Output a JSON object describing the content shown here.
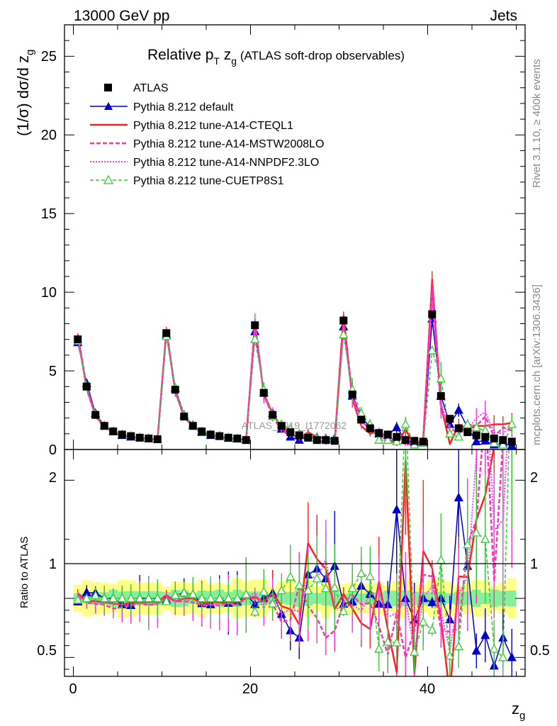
{
  "header": {
    "left": "13000 GeV pp",
    "right": "Jets"
  },
  "side_labels": {
    "rivet": "Rivet 3.1.10, ≥ 400k events",
    "mcplots": "mcplots.cern.ch [arXiv:1306.3436]"
  },
  "watermark": "ATLAS_2019_I1772062",
  "chart_data": {
    "type": "scatter",
    "title_main": "Relative p",
    "title_sub_t": "T",
    "title_z": " z",
    "title_sub_g": "g",
    "title_rest": " (ATLAS soft-drop observables)",
    "ylabel_main": "(1/σ) dσ/d z",
    "ylabel_sub": "g",
    "ratio_ylabel": "Ratio to ATLAS",
    "xlabel_main": "z",
    "xlabel_sub": "g",
    "xlim": [
      -1,
      51
    ],
    "ylim_main": [
      0,
      27
    ],
    "ylim_ratio": [
      0.34,
      2.26
    ],
    "xticks": [
      "0",
      "20",
      "40"
    ],
    "yticks_main": [
      "0",
      "5",
      "10",
      "15",
      "20",
      "25"
    ],
    "yticks_ratio": [
      "0.5",
      "1",
      "2"
    ],
    "x": [
      0.5,
      1.5,
      2.5,
      3.5,
      4.5,
      5.5,
      6.5,
      7.5,
      8.5,
      9.5,
      10.5,
      11.5,
      12.5,
      13.5,
      14.5,
      15.5,
      16.5,
      17.5,
      18.5,
      19.5,
      20.5,
      21.5,
      22.5,
      23.5,
      24.5,
      25.5,
      26.5,
      27.5,
      28.5,
      29.5,
      30.5,
      31.5,
      32.5,
      33.5,
      34.5,
      35.5,
      36.5,
      37.5,
      38.5,
      39.5,
      40.5,
      41.5,
      42.5,
      43.5,
      44.5,
      45.5,
      46.5,
      47.5,
      48.5,
      49.5
    ],
    "series": [
      {
        "name": "ATLAS",
        "color": "#000000",
        "values": [
          7.0,
          4.0,
          2.2,
          1.5,
          1.15,
          0.95,
          0.85,
          0.75,
          0.7,
          0.65,
          7.4,
          3.8,
          2.1,
          1.5,
          1.15,
          0.95,
          0.85,
          0.75,
          0.7,
          0.6,
          7.9,
          3.6,
          2.2,
          1.5,
          1.1,
          0.9,
          0.75,
          0.6,
          0.6,
          0.55,
          8.2,
          3.5,
          1.9,
          1.35,
          1.05,
          0.95,
          0.8,
          0.6,
          0.55,
          0.5,
          8.6,
          3.4,
          1.95,
          1.35,
          1.1,
          0.9,
          0.8,
          0.7,
          0.6,
          0.5
        ]
      },
      {
        "name": "Pythia 8.212 default",
        "color": "#0000cc",
        "values": [
          6.8,
          4.2,
          2.3,
          1.5,
          1.15,
          0.9,
          0.8,
          0.75,
          0.7,
          0.65,
          7.3,
          3.9,
          2.2,
          1.55,
          1.1,
          0.9,
          0.85,
          0.72,
          0.68,
          0.62,
          7.5,
          3.6,
          2.3,
          1.3,
          0.8,
          0.6,
          0.9,
          0.75,
          0.7,
          0.7,
          7.8,
          3.4,
          2.1,
          1.4,
          1.0,
          0.9,
          1.4,
          0.6,
          0.45,
          0.5,
          8.3,
          3.4,
          1.6,
          2.5,
          1.4,
          0.5,
          0.55,
          0.3,
          0.4,
          0.25
        ]
      },
      {
        "name": "Pythia 8.212 tune-A14-CTEQL1",
        "color": "#ff2222",
        "values": [
          7.3,
          3.9,
          2.15,
          1.45,
          1.1,
          0.9,
          0.82,
          0.72,
          0.68,
          0.63,
          7.6,
          3.7,
          2.1,
          1.5,
          1.1,
          0.92,
          0.82,
          0.72,
          0.68,
          0.6,
          8.0,
          3.5,
          2.3,
          1.4,
          1.0,
          0.7,
          1.1,
          0.8,
          0.75,
          0.5,
          8.5,
          3.2,
          1.5,
          1.0,
          1.2,
          0.7,
          0.3,
          1.3,
          0.2,
          0.7,
          10.8,
          2.8,
          0.35,
          1.6,
          1.3,
          1.5,
          1.5,
          1.6,
          1.6,
          1.7
        ]
      },
      {
        "name": "Pythia 8.212 tune-A14-MSTW2008LO",
        "color": "#ff33aa",
        "values": [
          7.2,
          3.85,
          2.1,
          1.42,
          1.05,
          0.88,
          0.8,
          0.72,
          0.66,
          0.62,
          7.5,
          3.7,
          2.05,
          1.45,
          1.08,
          0.9,
          0.8,
          0.72,
          0.66,
          0.6,
          7.9,
          3.5,
          2.1,
          1.2,
          0.9,
          1.0,
          0.7,
          0.5,
          0.4,
          0.4,
          7.9,
          3.6,
          1.8,
          1.3,
          0.8,
          0.5,
          0.7,
          0.3,
          0.4,
          0.6,
          10.2,
          2.5,
          1.4,
          1.0,
          1.6,
          1.5,
          2.1,
          0.8,
          1.4,
          1.2
        ]
      },
      {
        "name": "Pythia 8.212 tune-A14-NNPDF2.3LO",
        "color": "#ff33ff",
        "values": [
          7.1,
          3.9,
          2.1,
          1.45,
          1.1,
          0.9,
          0.8,
          0.73,
          0.67,
          0.62,
          7.4,
          3.7,
          2.1,
          1.45,
          1.1,
          0.9,
          0.8,
          0.72,
          0.66,
          0.6,
          8.3,
          3.3,
          2.3,
          1.3,
          1.0,
          0.8,
          0.9,
          0.7,
          0.8,
          0.5,
          7.6,
          3.3,
          1.7,
          1.4,
          1.1,
          0.8,
          0.7,
          0.6,
          0.3,
          0.5,
          9.5,
          3.0,
          1.1,
          1.4,
          1.3,
          2.0,
          2.4,
          1.1,
          1.0,
          1.5
        ]
      },
      {
        "name": "Pythia 8.212 tune-CUETP8S1",
        "color": "#33cc33",
        "values": [
          6.9,
          4.0,
          2.25,
          1.5,
          1.15,
          0.95,
          0.85,
          0.75,
          0.7,
          0.65,
          7.2,
          3.9,
          2.2,
          1.55,
          1.15,
          0.95,
          0.85,
          0.75,
          0.7,
          0.62,
          7.0,
          3.8,
          2.1,
          1.6,
          1.3,
          1.0,
          0.8,
          0.7,
          0.65,
          0.6,
          7.3,
          3.8,
          2.3,
          1.6,
          0.6,
          0.6,
          0.5,
          1.6,
          0.3,
          0.4,
          6.3,
          4.5,
          1.0,
          0.8,
          1.6,
          1.4,
          1.2,
          0.4,
          0.3,
          1.6
        ]
      }
    ],
    "legend_position": "top-left"
  }
}
